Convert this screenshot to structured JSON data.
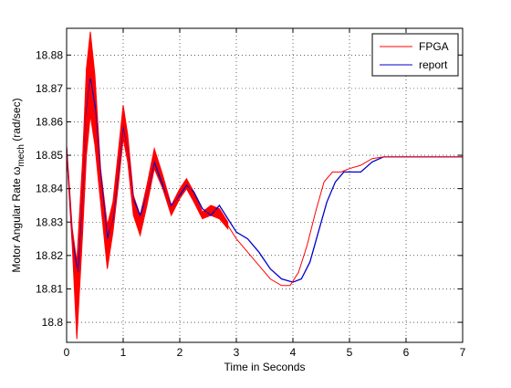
{
  "chart_data": {
    "type": "line",
    "title": "",
    "xlabel": "Time in Seconds",
    "ylabel_prefix": "Motor Angular Rate ω",
    "ylabel_sub": "mech",
    "ylabel_suffix": " (rad/sec)",
    "xlim": [
      0,
      7
    ],
    "ylim": [
      18.794,
      18.888
    ],
    "xticks": [
      0,
      1,
      2,
      3,
      4,
      5,
      6,
      7
    ],
    "xtick_labels": [
      "0",
      "1",
      "2",
      "3",
      "4",
      "5",
      "6",
      "7"
    ],
    "yticks": [
      18.8,
      18.81,
      18.82,
      18.83,
      18.84,
      18.85,
      18.86,
      18.87,
      18.88
    ],
    "ytick_labels": [
      "18.8",
      "18.81",
      "18.82",
      "18.83",
      "18.84",
      "18.85",
      "18.86",
      "18.87",
      "18.88"
    ],
    "grid": true,
    "legend_position": "top-right",
    "series": [
      {
        "name": "FPGA",
        "color": "#ff0000",
        "x": [
          0,
          0.1,
          0.18,
          0.28,
          0.35,
          0.42,
          0.5,
          0.6,
          0.72,
          0.82,
          0.92,
          1.0,
          1.08,
          1.18,
          1.3,
          1.42,
          1.55,
          1.7,
          1.85,
          2.0,
          2.12,
          2.25,
          2.4,
          2.55,
          2.7,
          2.85,
          3.0,
          3.2,
          3.4,
          3.6,
          3.8,
          3.95,
          4.1,
          4.25,
          4.4,
          4.55,
          4.7,
          4.85,
          5.0,
          5.2,
          5.4,
          5.6,
          5.8,
          6.0,
          6.3,
          6.6,
          7.0
        ],
        "y": [
          18.852,
          18.825,
          18.813,
          18.84,
          18.862,
          18.872,
          18.863,
          18.843,
          18.823,
          18.832,
          18.847,
          18.86,
          18.852,
          18.836,
          18.83,
          18.838,
          18.849,
          18.842,
          18.834,
          18.839,
          18.842,
          18.838,
          18.832,
          18.834,
          18.833,
          18.829,
          18.825,
          18.821,
          18.817,
          18.813,
          18.811,
          18.811,
          18.815,
          18.823,
          18.833,
          18.842,
          18.845,
          18.845,
          18.846,
          18.847,
          18.849,
          18.8495,
          18.8495,
          18.8495,
          18.8495,
          18.8495,
          18.8495
        ],
        "band_x": [
          0,
          0.1,
          0.18,
          0.28,
          0.35,
          0.42,
          0.5,
          0.6,
          0.72,
          0.82,
          0.92,
          1.0,
          1.08,
          1.18,
          1.3,
          1.42,
          1.55,
          1.7,
          1.85,
          2.0,
          2.12,
          2.25,
          2.4,
          2.55,
          2.7,
          2.85
        ],
        "band_y_upper": [
          18.853,
          18.828,
          18.818,
          18.848,
          18.876,
          18.887,
          18.874,
          18.846,
          18.829,
          18.836,
          18.852,
          18.865,
          18.856,
          18.838,
          18.832,
          18.841,
          18.852,
          18.844,
          18.835,
          18.84,
          18.843,
          18.839,
          18.833,
          18.835,
          18.834,
          18.83
        ],
        "band_y_lower": [
          18.851,
          18.823,
          18.795,
          18.826,
          18.85,
          18.862,
          18.853,
          18.836,
          18.816,
          18.827,
          18.842,
          18.855,
          18.848,
          18.832,
          18.826,
          18.835,
          18.846,
          18.84,
          18.832,
          18.837,
          18.84,
          18.836,
          18.831,
          18.832,
          18.831,
          18.828
        ]
      },
      {
        "name": "report",
        "color": "#0000cc",
        "x": [
          0,
          0.1,
          0.2,
          0.3,
          0.35,
          0.42,
          0.5,
          0.6,
          0.72,
          0.82,
          0.92,
          1.0,
          1.08,
          1.18,
          1.3,
          1.42,
          1.55,
          1.7,
          1.85,
          2.0,
          2.12,
          2.25,
          2.4,
          2.55,
          2.7,
          2.85,
          3.0,
          3.2,
          3.4,
          3.6,
          3.8,
          4.0,
          4.15,
          4.3,
          4.45,
          4.6,
          4.75,
          4.9,
          5.0,
          5.2,
          5.4,
          5.6,
          5.8,
          6.0,
          6.3,
          6.6,
          7.0
        ],
        "y": [
          18.852,
          18.825,
          18.815,
          18.845,
          18.863,
          18.873,
          18.865,
          18.845,
          18.825,
          18.831,
          18.846,
          18.859,
          18.852,
          18.837,
          18.832,
          18.838,
          18.848,
          18.841,
          18.835,
          18.838,
          18.841,
          18.839,
          18.834,
          18.832,
          18.835,
          18.831,
          18.827,
          18.825,
          18.821,
          18.816,
          18.813,
          18.812,
          18.813,
          18.818,
          18.827,
          18.836,
          18.842,
          18.845,
          18.845,
          18.845,
          18.848,
          18.8495,
          18.8495,
          18.8495,
          18.8495,
          18.8495,
          18.8495
        ]
      }
    ]
  }
}
